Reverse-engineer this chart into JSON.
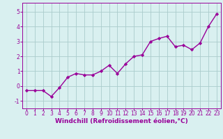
{
  "x": [
    0,
    1,
    2,
    3,
    4,
    5,
    6,
    7,
    8,
    9,
    10,
    11,
    12,
    13,
    14,
    15,
    16,
    17,
    18,
    19,
    20,
    21,
    22,
    23
  ],
  "y": [
    -0.3,
    -0.3,
    -0.3,
    -0.7,
    -0.1,
    0.6,
    0.85,
    0.75,
    0.75,
    1.0,
    1.4,
    0.85,
    1.5,
    2.0,
    2.1,
    3.0,
    3.2,
    3.35,
    2.65,
    2.75,
    2.45,
    2.9,
    4.0,
    4.85
  ],
  "line_color": "#990099",
  "marker": "D",
  "marker_size": 2.2,
  "linewidth": 1.0,
  "bg_color": "#d9f0f0",
  "grid_color": "#aacccc",
  "xlabel": "Windchill (Refroidissement éolien,°C)",
  "xlabel_color": "#990099",
  "tick_color": "#990099",
  "spine_color": "#990099",
  "xlim": [
    -0.5,
    23.5
  ],
  "ylim": [
    -1.5,
    5.6
  ],
  "yticks": [
    -1,
    0,
    1,
    2,
    3,
    4,
    5
  ],
  "xticks": [
    0,
    1,
    2,
    3,
    4,
    5,
    6,
    7,
    8,
    9,
    10,
    11,
    12,
    13,
    14,
    15,
    16,
    17,
    18,
    19,
    20,
    21,
    22,
    23
  ],
  "xlabel_fontsize": 6.5,
  "tick_fontsize": 5.5
}
